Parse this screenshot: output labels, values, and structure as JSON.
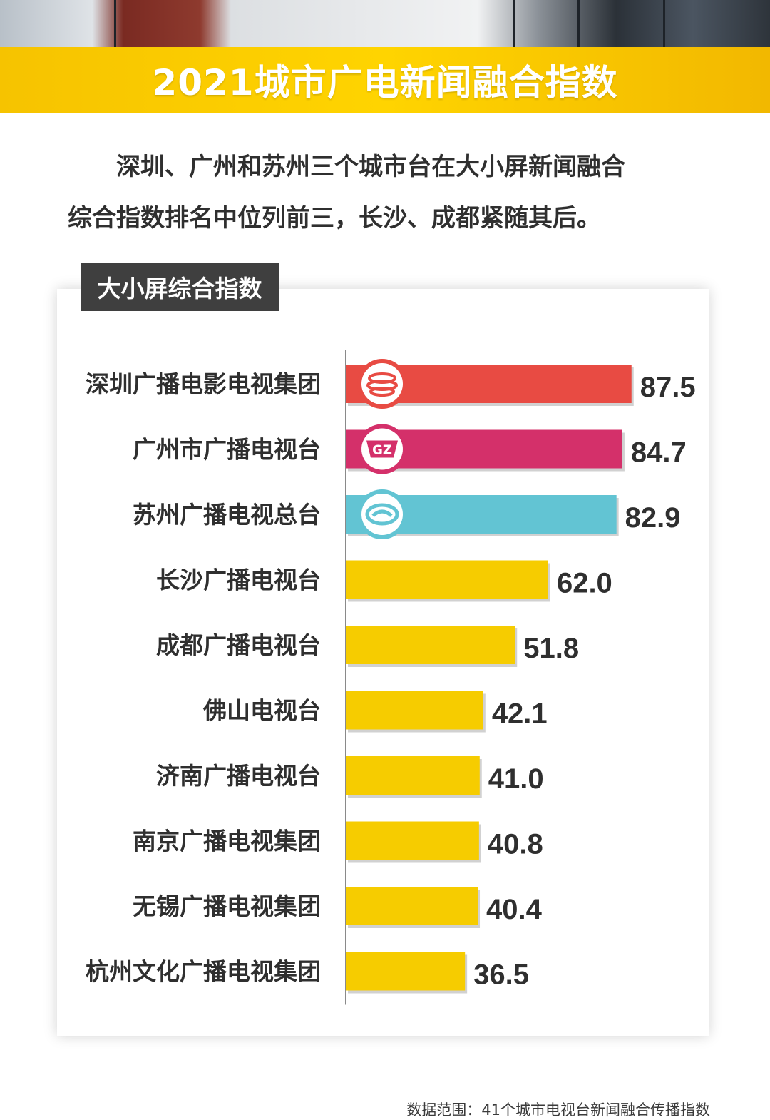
{
  "header": {
    "title": "2021城市广电新闻融合指数"
  },
  "intro": {
    "line1": "深圳、广州和苏州三个城市台在大小屏新闻融合",
    "line2": "综合指数排名中位列前三，长沙、成都紧随其后。"
  },
  "chart_tag": "大小屏综合指数",
  "colors": {
    "banner": "#FFD400",
    "shenzhen": "#E84B43",
    "guangzhou": "#D4306A",
    "suzhou": "#62C4D3",
    "others": "#F6CC00",
    "tag_bg": "#3F3F3F"
  },
  "chart_data": {
    "type": "bar",
    "orientation": "horizontal",
    "title": "大小屏综合指数",
    "categories": [
      "深圳广播电影电视集团",
      "广州市广播电视台",
      "苏州广播电视总台",
      "长沙广播电视台",
      "成都广播电视台",
      "佛山电视台",
      "济南广播电视台",
      "南京广播电视集团",
      "无锡广播电视集团",
      "杭州文化广播电视集团"
    ],
    "values": [
      87.5,
      84.7,
      82.9,
      62.0,
      51.8,
      42.1,
      41.0,
      40.8,
      40.4,
      36.5
    ],
    "value_labels": [
      "87.5",
      "84.7",
      "82.9",
      "62.0",
      "51.8",
      "42.1",
      "41.0",
      "40.8",
      "40.4",
      "36.5"
    ],
    "bar_colors": [
      "#E84B43",
      "#D4306A",
      "#62C4D3",
      "#F6CC00",
      "#F6CC00",
      "#F6CC00",
      "#F6CC00",
      "#F6CC00",
      "#F6CC00",
      "#F6CC00"
    ],
    "logos": [
      "shenzhen-logo-icon",
      "gz-logo-icon",
      "suzhou-logo-icon",
      "",
      "",
      "",
      "",
      "",
      "",
      ""
    ],
    "logo_text": [
      "",
      "GZ",
      "",
      "",
      "",
      "",
      "",
      "",
      "",
      ""
    ],
    "xlim": [
      0,
      100
    ],
    "grid": false,
    "legend": "none"
  },
  "footer": {
    "source": "数据范围：41个城市电视台新闻融合传播指数"
  }
}
